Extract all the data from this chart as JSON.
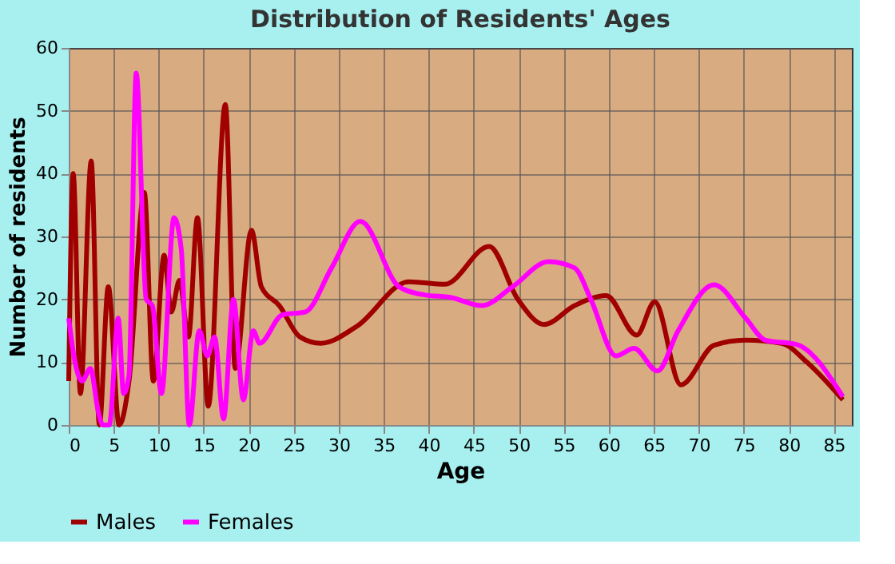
{
  "chart_data": {
    "type": "line",
    "title": "Distribution of Residents' Ages",
    "xlabel": "Age",
    "ylabel": "Number of residents",
    "xlim": [
      0,
      87
    ],
    "xticks": [
      0,
      5,
      10,
      15,
      20,
      25,
      30,
      35,
      40,
      45,
      50,
      55,
      60,
      65,
      70,
      75,
      80,
      85
    ],
    "ylim": [
      0,
      60
    ],
    "yticks": [
      0,
      10,
      20,
      30,
      40,
      50,
      60
    ],
    "grid": true,
    "legend": "bottom",
    "series": [
      {
        "name": "Males",
        "color": "#a00000",
        "x": [
          0,
          0.5,
          1.3,
          2.5,
          3.4,
          4.4,
          5.6,
          6.7,
          8.4,
          9.4,
          10.6,
          11.4,
          12.3,
          13.3,
          14.3,
          15.5,
          17.4,
          18.5,
          20.3,
          21.4,
          23.4,
          25.7,
          28,
          32,
          37.8,
          41.8,
          46.7,
          49.9,
          52.8,
          56.2,
          59.7,
          63.1,
          65.1,
          68,
          71.7,
          75.2,
          79.2,
          82,
          86
        ],
        "values": [
          7,
          40,
          5,
          42,
          0,
          22,
          0,
          7,
          37,
          7,
          27,
          18,
          23,
          14,
          33,
          3,
          51,
          9,
          31,
          22,
          19,
          14,
          13,
          15.7,
          22.8,
          22.4,
          28.4,
          20,
          16,
          19,
          20.6,
          14.3,
          19.6,
          6.4,
          12.7,
          13.5,
          13,
          10,
          4
        ]
      },
      {
        "name": "Females",
        "color": "#ff00ff",
        "x": [
          0,
          0.7,
          1.5,
          2.4,
          3.3,
          3.8,
          4.5,
          5.5,
          6.1,
          6.7,
          7.5,
          8.6,
          9.3,
          10.3,
          11.7,
          12.5,
          13.4,
          14.5,
          15.4,
          16.2,
          17.2,
          18.3,
          19.4,
          20.5,
          21.2,
          23.7,
          26.3,
          29.2,
          32.4,
          36.7,
          39.5,
          42.4,
          45.9,
          49.3,
          53.3,
          56.2,
          58,
          60.8,
          62.8,
          65.4,
          67.7,
          71.7,
          75.2,
          77.4,
          80.9,
          86
        ],
        "values": [
          17,
          10,
          7,
          9,
          2,
          0,
          0,
          17,
          5,
          8,
          56,
          20,
          19,
          5,
          33,
          28,
          0,
          15,
          11,
          14,
          1,
          20,
          4,
          15,
          13,
          17.5,
          18,
          25,
          32.4,
          22,
          20.7,
          20.3,
          19,
          22,
          26,
          25,
          20,
          11,
          12.2,
          8.6,
          15,
          22.3,
          17,
          13.5,
          12.8,
          4.5
        ]
      }
    ]
  }
}
